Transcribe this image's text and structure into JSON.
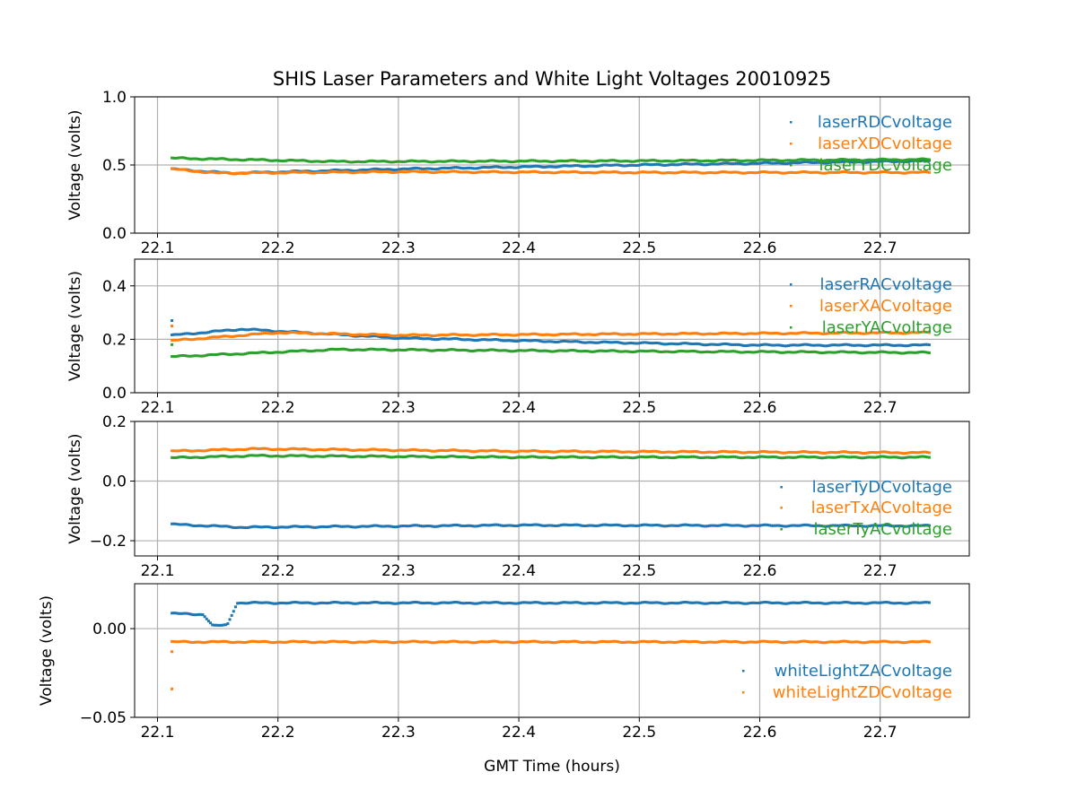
{
  "chart_data": {
    "type": "scatter",
    "title": "SHIS Laser Parameters and White Light Voltages 20010925",
    "xlabel": "GMT Time (hours)",
    "xlim": [
      22.081,
      22.774
    ],
    "xticks": [
      "22.1",
      "22.2",
      "22.3",
      "22.4",
      "22.5",
      "22.6",
      "22.7"
    ],
    "grid": true,
    "panels": [
      {
        "ylabel": "Voltage (volts)",
        "ylim": [
          0,
          1.0
        ],
        "yticks": [
          "0.0",
          "0.5",
          "1.0"
        ],
        "legend_position": "upper-right",
        "series": [
          {
            "name": "laserRDCvoltage",
            "color": "#1f77b4",
            "x": [
              22.112,
              22.16,
              22.3,
              22.5,
              22.742
            ],
            "y": [
              0.47,
              0.44,
              0.47,
              0.5,
              0.53
            ],
            "outliers": []
          },
          {
            "name": "laserXDCvoltage",
            "color": "#ff7f0e",
            "x": [
              22.112,
              22.15,
              22.3,
              22.5,
              22.742
            ],
            "y": [
              0.47,
              0.44,
              0.45,
              0.445,
              0.445
            ],
            "outliers": []
          },
          {
            "name": "laserYDCvoltage",
            "color": "#2ca02c",
            "x": [
              22.112,
              22.25,
              22.5,
              22.742
            ],
            "y": [
              0.55,
              0.525,
              0.53,
              0.54
            ],
            "outliers": []
          }
        ]
      },
      {
        "ylabel": "Voltage (volts)",
        "ylim": [
          0,
          0.5
        ],
        "yticks": [
          "0.0",
          "0.2",
          "0.4"
        ],
        "legend_position": "upper-right",
        "series": [
          {
            "name": "laserRACvoltage",
            "color": "#1f77b4",
            "x": [
              22.112,
              22.17,
              22.3,
              22.45,
              22.6,
              22.742
            ],
            "y": [
              0.215,
              0.238,
              0.205,
              0.19,
              0.178,
              0.178
            ],
            "outliers": [
              [
                22.112,
                0.27
              ]
            ]
          },
          {
            "name": "laserXACvoltage",
            "color": "#ff7f0e",
            "x": [
              22.112,
              22.2,
              22.3,
              22.5,
              22.742
            ],
            "y": [
              0.195,
              0.225,
              0.215,
              0.22,
              0.225
            ],
            "outliers": [
              [
                22.112,
                0.25
              ]
            ]
          },
          {
            "name": "laserYACvoltage",
            "color": "#2ca02c",
            "x": [
              22.112,
              22.25,
              22.5,
              22.742
            ],
            "y": [
              0.135,
              0.162,
              0.155,
              0.15
            ],
            "outliers": [
              [
                22.112,
                0.18
              ]
            ]
          }
        ]
      },
      {
        "ylabel": "Voltage (volts)",
        "ylim": [
          -0.251,
          0.2
        ],
        "yticks": [
          "−0.2",
          "0.0",
          "0.2"
        ],
        "legend_position": "lower-right",
        "series": [
          {
            "name": "laserTyDCvoltage",
            "color": "#1f77b4",
            "x": [
              22.112,
              22.17,
              22.4,
              22.742
            ],
            "y": [
              -0.145,
              -0.155,
              -0.148,
              -0.15
            ],
            "outliers": []
          },
          {
            "name": "laserTxACvoltage",
            "color": "#ff7f0e",
            "x": [
              22.112,
              22.18,
              22.4,
              22.742
            ],
            "y": [
              0.1,
              0.108,
              0.1,
              0.095
            ],
            "outliers": []
          },
          {
            "name": "laserTyACvoltage",
            "color": "#2ca02c",
            "x": [
              22.112,
              22.18,
              22.4,
              22.742
            ],
            "y": [
              0.078,
              0.085,
              0.08,
              0.08
            ],
            "outliers": []
          }
        ]
      },
      {
        "ylabel": "Voltage (volts)",
        "ylim": [
          -0.05,
          0.0253
        ],
        "yticks": [
          "−0.05",
          "0.00"
        ],
        "legend_position": "lower-right",
        "series": [
          {
            "name": "whiteLightZACvoltage",
            "color": "#1f77b4",
            "x": [
              22.112,
              22.138,
              22.146,
              22.158,
              22.166,
              22.4,
              22.742
            ],
            "y": [
              0.0085,
              0.008,
              0.0015,
              0.002,
              0.0145,
              0.0145,
              0.0145
            ],
            "outliers": []
          },
          {
            "name": "whiteLightZDCvoltage",
            "color": "#ff7f0e",
            "x": [
              22.112,
              22.742
            ],
            "y": [
              -0.0075,
              -0.0075
            ],
            "outliers": [
              [
                22.112,
                -0.013
              ],
              [
                22.112,
                -0.034
              ]
            ]
          }
        ]
      }
    ]
  }
}
